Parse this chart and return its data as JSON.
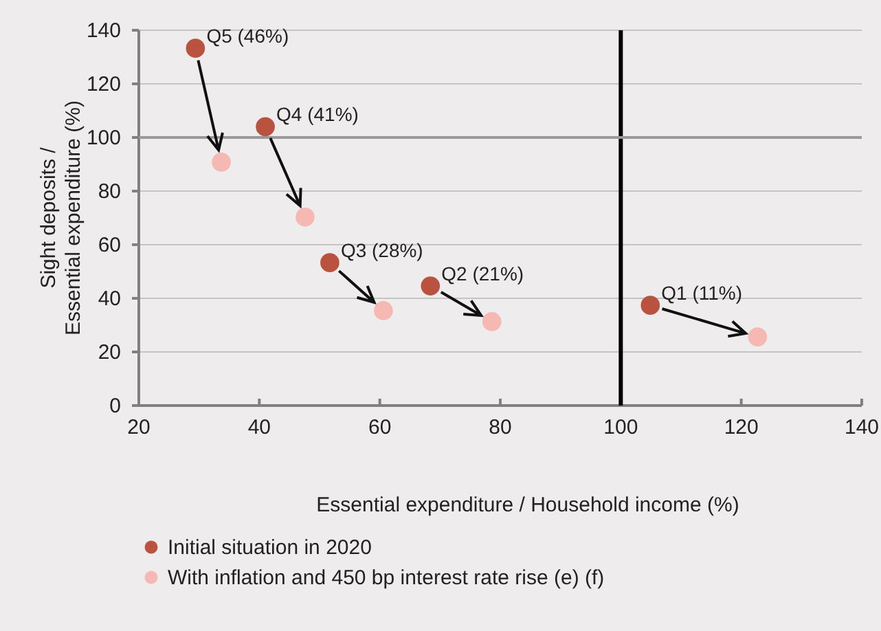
{
  "chart_data": {
    "type": "scatter",
    "xlabel": "Essential expenditure / Household income (%)",
    "ylabel": "Sight deposits / Essential expenditure (%)",
    "xlim": [
      20,
      140
    ],
    "xticks": [
      20,
      40,
      60,
      80,
      100,
      120,
      140
    ],
    "ylim": [
      0,
      140
    ],
    "yticks": [
      0,
      20,
      40,
      60,
      80,
      100,
      120,
      140
    ],
    "grid": "y",
    "legend": "bottom",
    "marker": "circle",
    "series": [
      {
        "name": "Initial situation in 2020",
        "color": "#b9533f",
        "x": [
          29.4,
          41,
          51.7,
          68.4,
          104.9
        ],
        "values": [
          133.3,
          104,
          53.3,
          44.6,
          37.4
        ]
      },
      {
        "name": "With inflation and 450 bp interest rate rise (e) (f)",
        "color": "#f6b8b2",
        "x": [
          33.7,
          47.6,
          60.6,
          78.6,
          122.7
        ],
        "values": [
          90.8,
          70.3,
          35.4,
          31.3,
          25.6
        ]
      }
    ],
    "ref_lines": [
      {
        "axis": "x",
        "value": 100,
        "color": "#000000"
      },
      {
        "axis": "y",
        "value": 100,
        "color": "#999999"
      }
    ],
    "annotations": [
      {
        "text": "Q5 (46%)",
        "x": 29.4,
        "y": 133.3
      },
      {
        "text": "Q4 (41%)",
        "x": 41,
        "y": 104
      },
      {
        "text": "Q3 (28%)",
        "x": 51.7,
        "y": 53.3
      },
      {
        "text": "Q2 (21%)",
        "x": 68.4,
        "y": 44.6
      },
      {
        "text": "Q1 (11%)",
        "x": 104.9,
        "y": 37.4
      }
    ]
  }
}
